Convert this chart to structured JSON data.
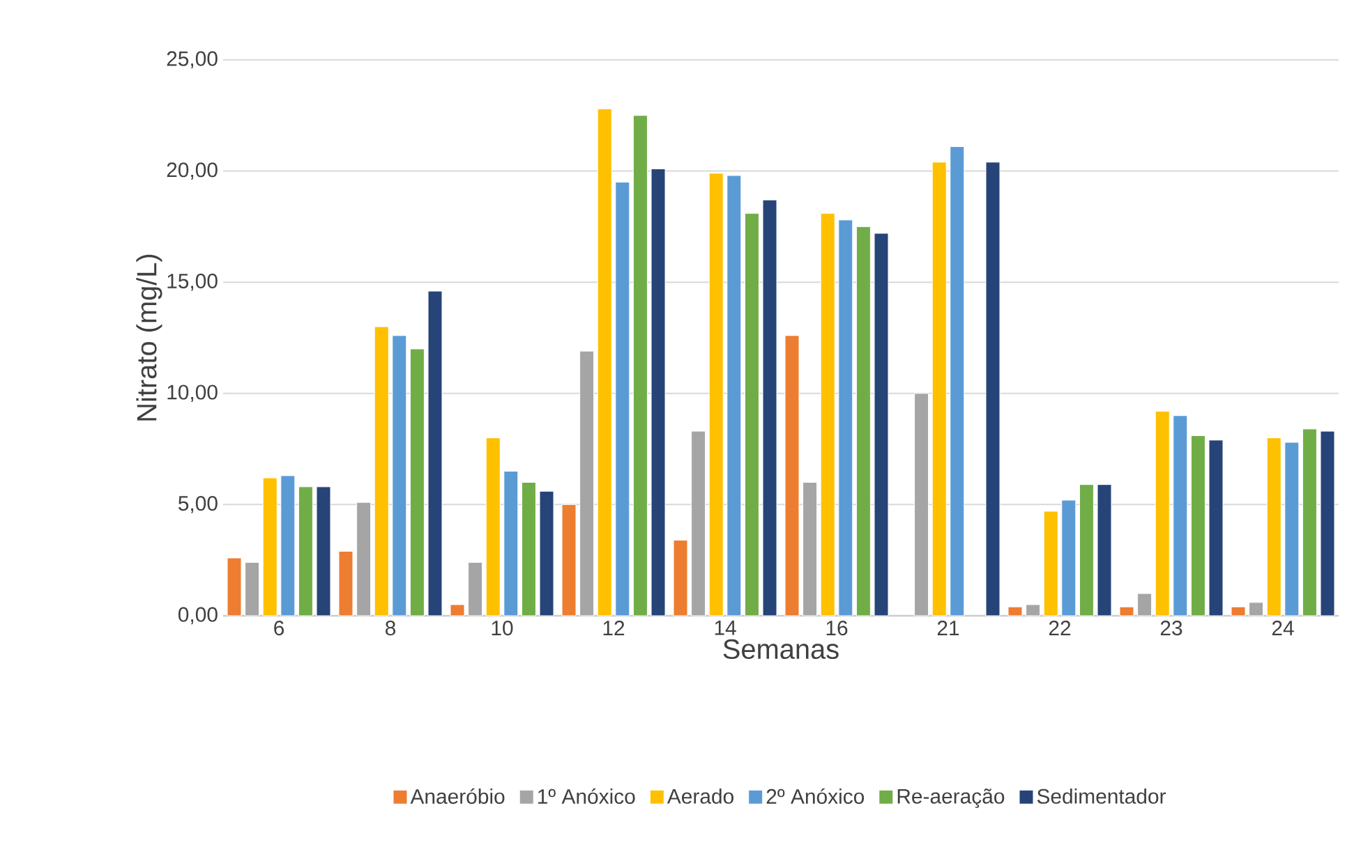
{
  "chart_data": {
    "type": "bar",
    "xlabel": "Semanas",
    "ylabel": "Nitrato (mg/L)",
    "categories": [
      "6",
      "8",
      "10",
      "12",
      "14",
      "16",
      "21",
      "22",
      "23",
      "24"
    ],
    "series": [
      {
        "name": "Anaeróbio",
        "color": "#ed7d31",
        "values": [
          2.6,
          2.9,
          0.5,
          5.0,
          3.4,
          12.6,
          null,
          0.4,
          0.4,
          0.4
        ]
      },
      {
        "name": "1º Anóxico",
        "color": "#a5a5a5",
        "values": [
          2.4,
          5.1,
          2.4,
          11.9,
          8.3,
          6.0,
          10.0,
          0.5,
          1.0,
          0.6
        ]
      },
      {
        "name": "Aerado",
        "color": "#ffc000",
        "values": [
          6.2,
          13.0,
          8.0,
          22.8,
          19.9,
          18.1,
          20.4,
          4.7,
          9.2,
          8.0
        ]
      },
      {
        "name": "2º Anóxico",
        "color": "#5b9bd5",
        "values": [
          6.3,
          12.6,
          6.5,
          19.5,
          19.8,
          17.8,
          21.1,
          5.2,
          9.0,
          7.8
        ]
      },
      {
        "name": "Re-aeração",
        "color": "#70ad47",
        "values": [
          5.8,
          12.0,
          6.0,
          22.5,
          18.1,
          17.5,
          null,
          5.9,
          8.1,
          8.4
        ]
      },
      {
        "name": "Sedimentador",
        "color": "#264478",
        "values": [
          5.8,
          14.6,
          5.6,
          20.1,
          18.7,
          17.2,
          20.4,
          5.9,
          7.9,
          8.3
        ]
      }
    ],
    "ylim": [
      0,
      25
    ],
    "yticks": [
      {
        "value": 0,
        "label": "0,00"
      },
      {
        "value": 5,
        "label": "5,00"
      },
      {
        "value": 10,
        "label": "10,00"
      },
      {
        "value": 15,
        "label": "15,00"
      },
      {
        "value": 20,
        "label": "20,00"
      },
      {
        "value": 25,
        "label": "25,00"
      }
    ],
    "grid": "y",
    "legend": "bottom"
  }
}
